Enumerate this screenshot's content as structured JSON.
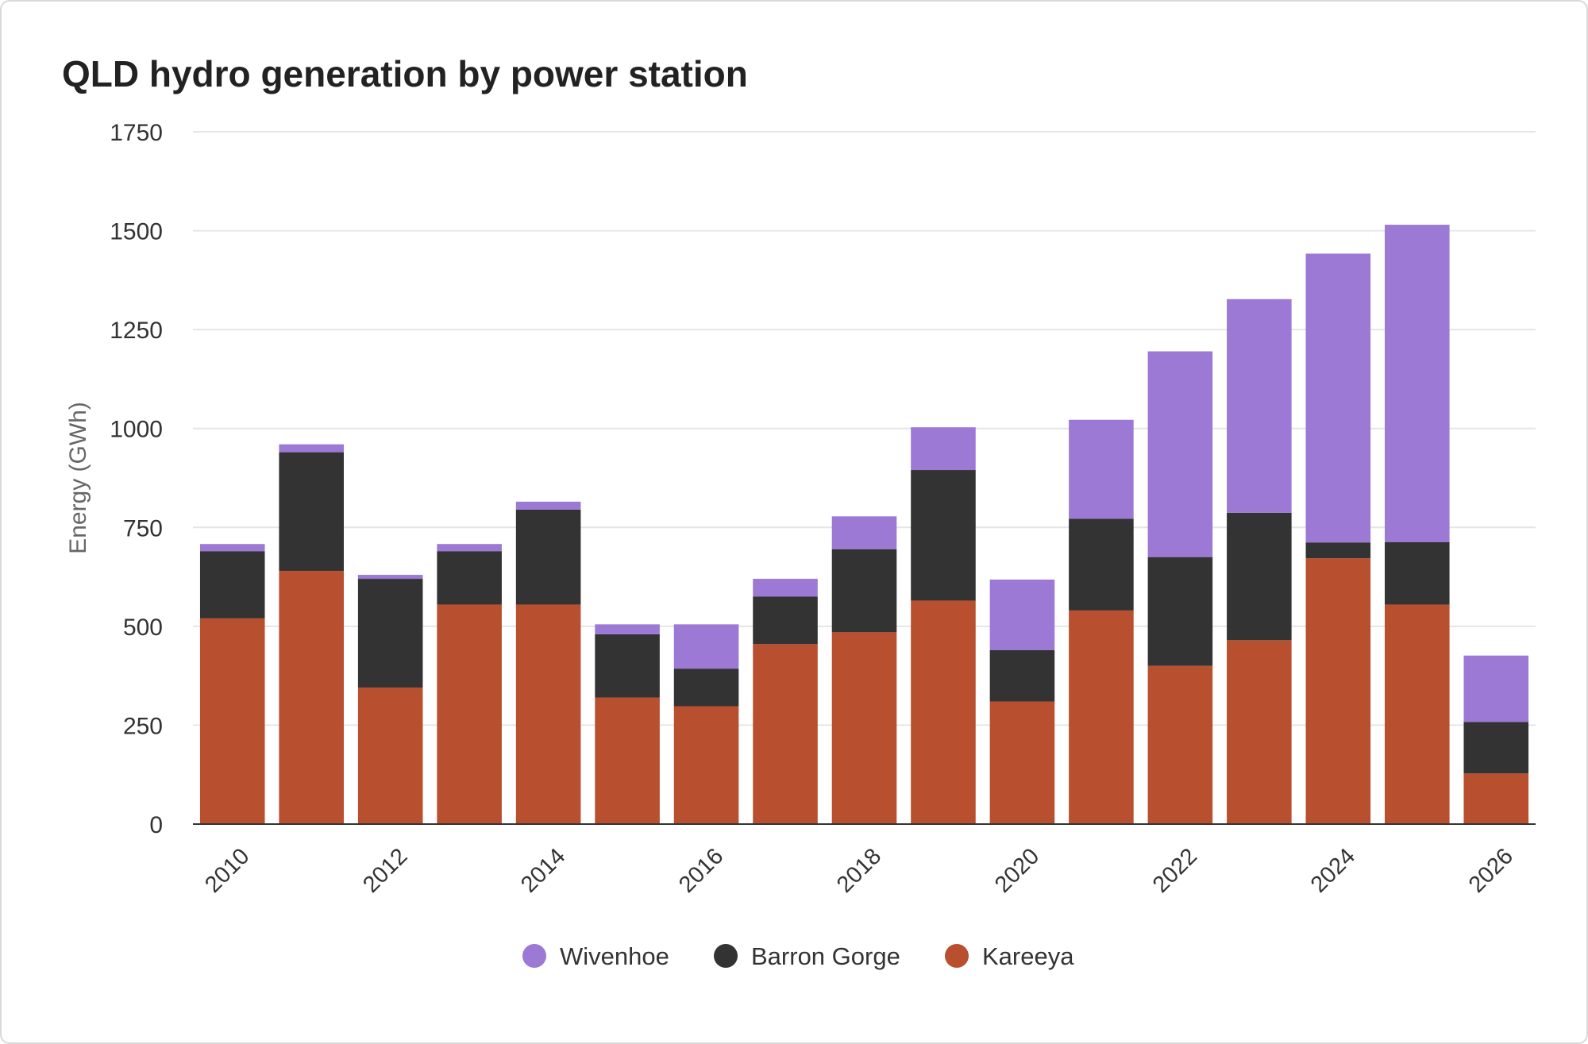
{
  "chart_data": {
    "type": "bar",
    "stacked": true,
    "title": "QLD hydro generation by power station",
    "xlabel": "",
    "ylabel": "Energy (GWh)",
    "ylim": [
      0,
      1750
    ],
    "yticks": [
      0,
      250,
      500,
      750,
      1000,
      1250,
      1500,
      1750
    ],
    "grid": true,
    "legend_position": "bottom",
    "categories": [
      "2010",
      "2011",
      "2012",
      "2013",
      "2014",
      "2015",
      "2016",
      "2017",
      "2018",
      "2019",
      "2020",
      "2021",
      "2022",
      "2023",
      "2024",
      "2025",
      "2026"
    ],
    "xtick_labels": [
      "2010",
      "2012",
      "2014",
      "2016",
      "2018",
      "2020",
      "2022",
      "2024",
      "2026"
    ],
    "series": [
      {
        "name": "Kareeya",
        "color": "#b84f2e",
        "values": [
          520,
          640,
          345,
          555,
          555,
          320,
          298,
          455,
          485,
          565,
          310,
          540,
          400,
          465,
          672,
          555,
          128
        ]
      },
      {
        "name": "Barron Gorge",
        "color": "#333333",
        "values": [
          170,
          300,
          275,
          135,
          240,
          160,
          95,
          120,
          210,
          330,
          130,
          232,
          275,
          322,
          40,
          158,
          130
        ]
      },
      {
        "name": "Wivenhoe",
        "color": "#9b79d4",
        "values": [
          18,
          20,
          10,
          18,
          20,
          25,
          112,
          45,
          83,
          108,
          178,
          250,
          520,
          540,
          730,
          802,
          168
        ]
      }
    ],
    "legend_order": [
      "Wivenhoe",
      "Barron Gorge",
      "Kareeya"
    ]
  }
}
